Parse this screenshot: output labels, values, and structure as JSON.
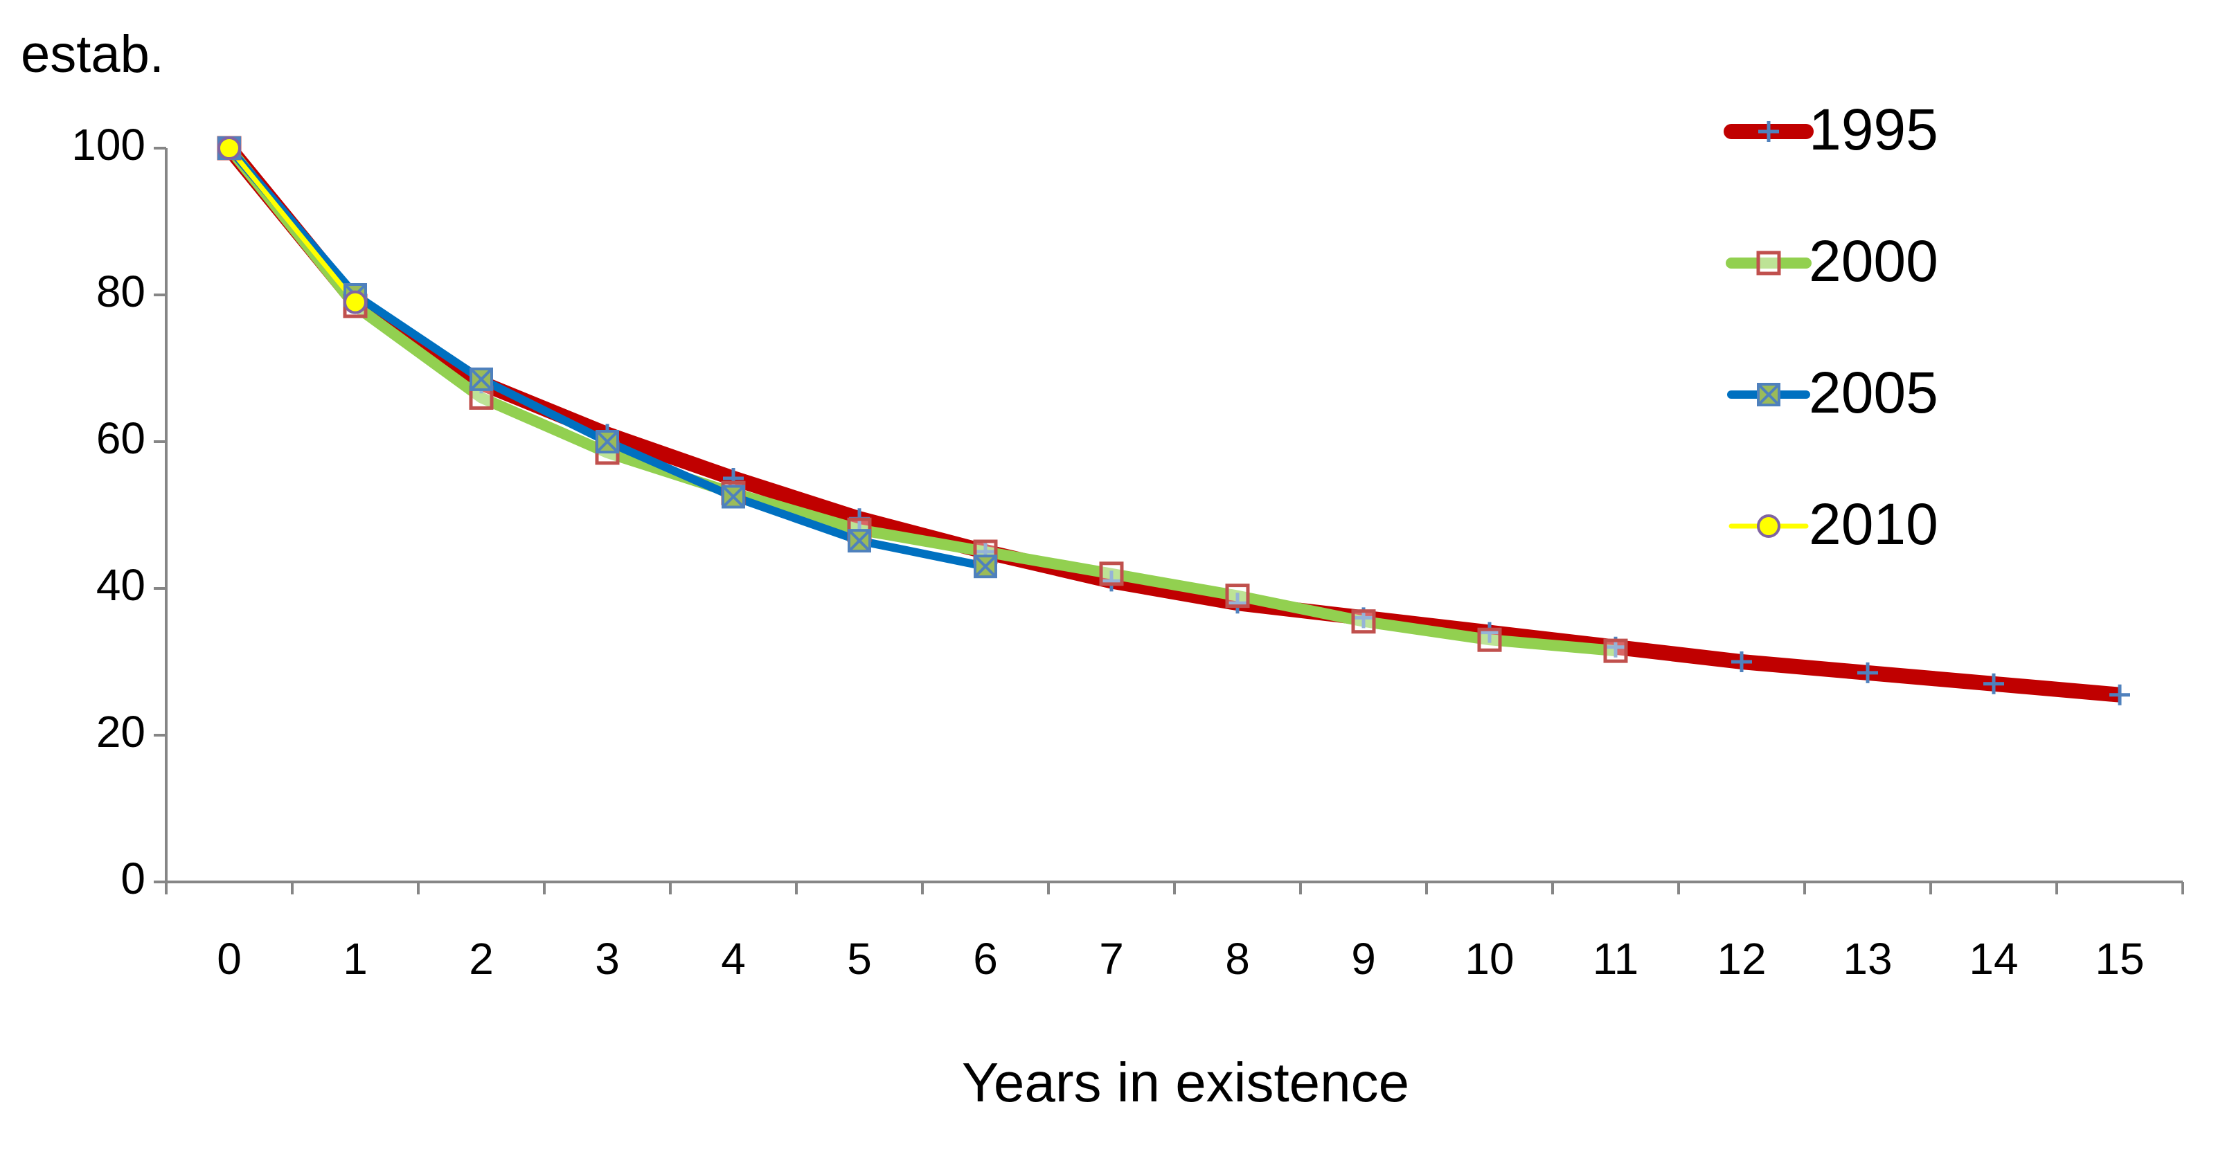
{
  "chart_data": {
    "type": "line",
    "y_label": "estab.",
    "x_label": "Years in existence",
    "categories": [
      "0",
      "1",
      "2",
      "3",
      "4",
      "5",
      "6",
      "7",
      "8",
      "9",
      "10",
      "11",
      "12",
      "13",
      "14",
      "15"
    ],
    "series": [
      {
        "name": "1995",
        "color": "#c00000",
        "marker": "plus",
        "marker_color": "#4f81bd",
        "values": [
          100,
          79,
          68,
          61,
          55,
          49.5,
          45,
          41,
          38,
          36,
          34,
          32,
          30,
          28.5,
          27,
          25.5
        ]
      },
      {
        "name": "2000",
        "color": "#92d050",
        "marker": "square",
        "marker_color": "#c0504d",
        "values": [
          100,
          78.5,
          66,
          58.5,
          53,
          48,
          45,
          42,
          39,
          35.5,
          33,
          31.5,
          null,
          null,
          null,
          null
        ]
      },
      {
        "name": "2005",
        "color": "#0070c0",
        "marker": "xsquare",
        "marker_color": "#9bbb59",
        "values": [
          100,
          80,
          68.5,
          60,
          52.5,
          46.5,
          43,
          null,
          null,
          null,
          null,
          null,
          null,
          null,
          null,
          null
        ]
      },
      {
        "name": "2010",
        "color": "#ffff00",
        "marker": "circle",
        "marker_color": "#8064a2",
        "values": [
          100,
          79,
          null,
          null,
          null,
          null,
          null,
          null,
          null,
          null,
          null,
          null,
          null,
          null,
          null,
          null
        ]
      }
    ],
    "ylim": [
      0,
      100
    ],
    "yticks": [
      0,
      20,
      40,
      60,
      80,
      100
    ],
    "grid": false,
    "legend": "upper right"
  }
}
